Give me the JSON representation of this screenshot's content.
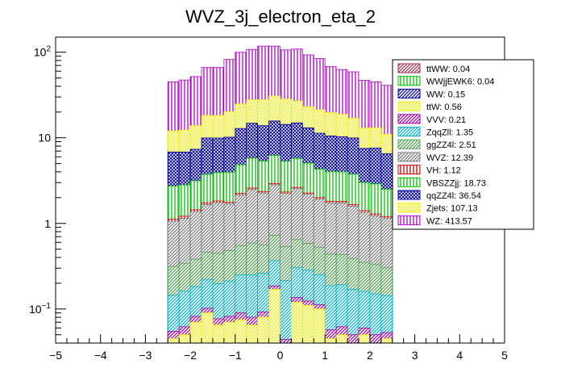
{
  "chart_data": {
    "type": "bar",
    "stacked": true,
    "title": "WVZ_3j_electron_eta_2",
    "xlabel": "",
    "ylabel": "",
    "xlim": [
      -5,
      5
    ],
    "ylim": [
      0.04,
      150
    ],
    "yscale": "log",
    "bin_edges": [
      -2.5,
      -2.25,
      -2.0,
      -1.75,
      -1.5,
      -1.25,
      -1.0,
      -0.75,
      -0.5,
      -0.25,
      0.0,
      0.25,
      0.5,
      0.75,
      1.0,
      1.25,
      1.5,
      1.75,
      2.0,
      2.25,
      2.5
    ],
    "x_ticks": [
      -5,
      -4,
      -3,
      -2,
      -1,
      0,
      1,
      2,
      3,
      4,
      5
    ],
    "x_tick_labels": [
      "−5",
      "−4",
      "−3",
      "−2",
      "−1",
      "0",
      "1",
      "2",
      "3",
      "4",
      "5"
    ],
    "y_ticks": [
      0.1,
      1,
      10,
      100
    ],
    "legend_position": "top-right",
    "series": [
      {
        "name": "WZ: 413.57",
        "color": "#b000c8",
        "pattern": "vlines",
        "values": [
          33,
          35,
          38,
          48,
          48,
          62,
          75,
          80,
          90,
          87,
          78,
          82,
          70,
          63,
          48,
          44,
          42,
          34,
          32,
          30
        ]
      },
      {
        "name": "Zjets: 107.13",
        "color": "#f0f000",
        "pattern": "diag",
        "values": [
          5.2,
          5.5,
          6.5,
          8.3,
          8.3,
          10,
          12,
          13,
          14,
          15,
          14,
          12,
          10,
          10,
          9.2,
          8.5,
          7,
          5.5,
          5.5,
          4.5
        ]
      },
      {
        "name": "qqZZ4l: 36.54",
        "color": "#0000a0",
        "pattern": "grid",
        "values": [
          4.1,
          4.0,
          4.2,
          6.2,
          6.0,
          6.2,
          8.0,
          9.0,
          8.5,
          9.5,
          9.0,
          9.2,
          8.0,
          7.0,
          6.5,
          6.3,
          6.2,
          4.5,
          4.7,
          4.0
        ]
      },
      {
        "name": "VBSZZjj: 18.73",
        "color": "#00c000",
        "pattern": "vlines",
        "values": [
          1.6,
          1.6,
          1.7,
          2.0,
          2.1,
          2.2,
          2.6,
          3.2,
          3.0,
          3.3,
          3.0,
          3.1,
          2.8,
          2.3,
          2.2,
          2.2,
          2.1,
          1.6,
          1.6,
          1.3
        ]
      },
      {
        "name": "VH: 1.12",
        "color": "#d00000",
        "pattern": "vlines",
        "values": [
          0.06,
          0.07,
          0.06,
          0.08,
          0.08,
          0.08,
          0.09,
          0.1,
          0.09,
          0.1,
          0.09,
          0.09,
          0.08,
          0.08,
          0.08,
          0.07,
          0.07,
          0.06,
          0.06,
          0.05
        ]
      },
      {
        "name": "WVZ: 12.39",
        "color": "#7a7a7a",
        "pattern": "diag",
        "values": [
          0.75,
          0.8,
          1.0,
          1.2,
          1.3,
          1.2,
          1.6,
          1.9,
          1.7,
          2.1,
          1.7,
          1.9,
          1.6,
          1.4,
          1.3,
          1.3,
          1.2,
          1.0,
          0.9,
          0.85
        ]
      },
      {
        "name": "ggZZ4l: 2.51",
        "color": "#50a050",
        "pattern": "diag",
        "values": [
          0.17,
          0.18,
          0.2,
          0.24,
          0.25,
          0.27,
          0.3,
          0.34,
          0.3,
          0.36,
          0.32,
          0.34,
          0.3,
          0.27,
          0.25,
          0.24,
          0.22,
          0.19,
          0.18,
          0.16
        ]
      },
      {
        "name": "ZqqZll: 1.35",
        "color": "#00b4c8",
        "pattern": "diag",
        "values": [
          0.09,
          0.1,
          0.1,
          0.12,
          0.12,
          0.13,
          0.16,
          0.17,
          0.17,
          0.18,
          0.17,
          0.17,
          0.16,
          0.14,
          0.13,
          0.13,
          0.12,
          0.1,
          0.1,
          0.09
        ]
      },
      {
        "name": "VVV: 0.21",
        "color": "#a000a0",
        "pattern": "diag",
        "values": [
          0.01,
          0.012,
          0.012,
          0.012,
          0.012,
          0.012,
          0.015,
          0.015,
          0.012,
          0.016,
          0.014,
          0.016,
          0.014,
          0.012,
          0.012,
          0.012,
          0.01,
          0.01,
          0.01,
          0.008
        ]
      },
      {
        "name": "ttW: 0.56",
        "color": "#f0f000",
        "pattern": "diag",
        "values": [
          0.045,
          0.05,
          0.07,
          0.09,
          0.065,
          0.07,
          0.075,
          0.065,
          0.04,
          0.17,
          0.03,
          0.12,
          0.11,
          0.1,
          0.045,
          0.05,
          0.04,
          0.05,
          0.04,
          0.045
        ]
      },
      {
        "name": "WW: 0.15",
        "color": "#0000a0",
        "pattern": "diag",
        "values": [
          0.0,
          0.0,
          0.0,
          0.0,
          0.0,
          0.0,
          0.0,
          0.0,
          0.04,
          0.0,
          0.0,
          0.0,
          0.0,
          0.0,
          0.0,
          0.0,
          0.0,
          0.0,
          0.0,
          0.0
        ]
      },
      {
        "name": "WWjjEWK6: 0.04",
        "color": "#00c000",
        "pattern": "vlines",
        "values": [
          0.0,
          0.0,
          0.0,
          0.0,
          0.0,
          0.0,
          0.0,
          0.0,
          0.0,
          0.0,
          0.0,
          0.0,
          0.0,
          0.0,
          0.0,
          0.0,
          0.0,
          0.0,
          0.0,
          0.0
        ]
      },
      {
        "name": "ttWW: 0.04",
        "color": "#a03050",
        "pattern": "diag",
        "values": [
          0.0,
          0.0,
          0.0,
          0.0,
          0.0,
          0.0,
          0.0,
          0.0,
          0.0,
          0.0,
          0.0,
          0.0,
          0.0,
          0.0,
          0.0,
          0.0,
          0.0,
          0.0,
          0.0,
          0.0
        ]
      }
    ]
  }
}
